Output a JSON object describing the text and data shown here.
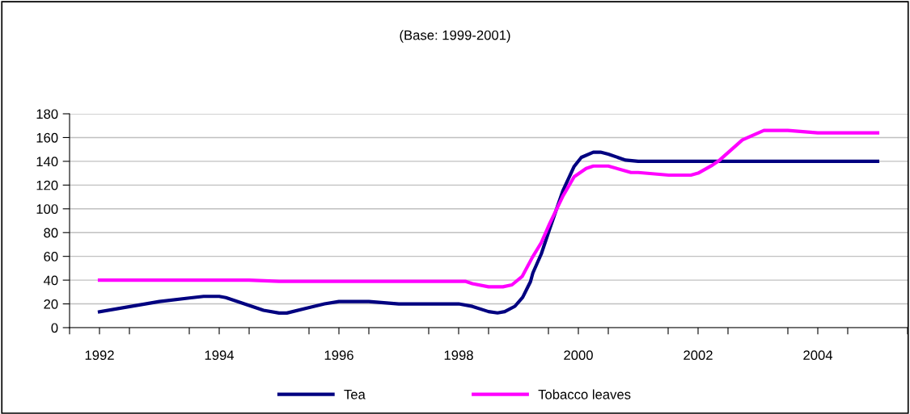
{
  "chart_data": {
    "type": "line",
    "title": "(Base: 1999-2001)",
    "xlim": [
      1991.5,
      2005.5
    ],
    "xticks": [
      {
        "value": 1991.5,
        "label": null
      },
      1992,
      {
        "value": 1992.5,
        "label": null
      },
      {
        "value": 1993.5,
        "label": null
      },
      1994,
      {
        "value": 1994.5,
        "label": null
      },
      {
        "value": 1995.5,
        "label": null
      },
      1996,
      {
        "value": 1996.5,
        "label": null
      },
      {
        "value": 1997.5,
        "label": null
      },
      1998,
      {
        "value": 1998.5,
        "label": null
      },
      {
        "value": 1999.5,
        "label": null
      },
      2000,
      {
        "value": 2000.5,
        "label": null
      },
      {
        "value": 2001.5,
        "label": null
      },
      2002,
      {
        "value": 2002.5,
        "label": null
      },
      {
        "value": 2003.5,
        "label": null
      },
      2004,
      {
        "value": 2004.5,
        "label": null
      },
      {
        "value": 2005.5,
        "label": null
      }
    ],
    "ylim": [
      0,
      180
    ],
    "yticks": [
      0,
      20,
      40,
      60,
      80,
      100,
      120,
      140,
      160,
      180
    ],
    "grid": "y",
    "legend": "bottom",
    "marker": "none",
    "line_style": "solid",
    "series": [
      {
        "name": "Tea",
        "color": "#000080",
        "x": [
          1992,
          1993,
          1993.5,
          1993.74,
          1994,
          1994.11,
          1994.5,
          1994.74,
          1995,
          1995.13,
          1995.48,
          1995.76,
          1996,
          1996.5,
          1997,
          1998,
          1998.23,
          1998.5,
          1998.65,
          1998.77,
          1998.94,
          1999.07,
          1999.2,
          1999.24,
          1999.38,
          1999.52,
          1999.74,
          1999.93,
          2000.05,
          2000.25,
          2000.37,
          2000.5,
          2000.79,
          2001,
          2005
        ],
        "values": [
          13.3,
          22,
          25,
          26.3,
          26.3,
          25.3,
          18.7,
          14.6,
          12.3,
          12.3,
          16.6,
          20,
          22,
          22,
          20,
          20,
          17.9,
          13.5,
          12.4,
          13.5,
          18,
          25.6,
          38.7,
          46,
          62,
          83,
          115,
          135.7,
          143.3,
          147.7,
          147.7,
          146,
          141,
          140,
          140
        ]
      },
      {
        "name": "Tobacco leaves",
        "color": "#ff00ff",
        "x": [
          1992,
          1994.5,
          1995,
          1998.11,
          1998.23,
          1998.5,
          1998.74,
          1998.89,
          1999.06,
          1999.23,
          1999.38,
          1999.52,
          1999.74,
          1999.93,
          2000.13,
          2000.25,
          2000.5,
          2000.88,
          2001,
          2001.51,
          2001.88,
          2002,
          2002.24,
          2002.36,
          2002.74,
          2003.1,
          2003.5,
          2004,
          2005
        ],
        "values": [
          40,
          40,
          39,
          39,
          37,
          34.4,
          34.4,
          36,
          43,
          59,
          71.5,
          87.5,
          110.5,
          127,
          134,
          136,
          136,
          130.6,
          130.6,
          128.4,
          128.4,
          130,
          136.8,
          141,
          158,
          166,
          166,
          164,
          164
        ]
      }
    ]
  }
}
